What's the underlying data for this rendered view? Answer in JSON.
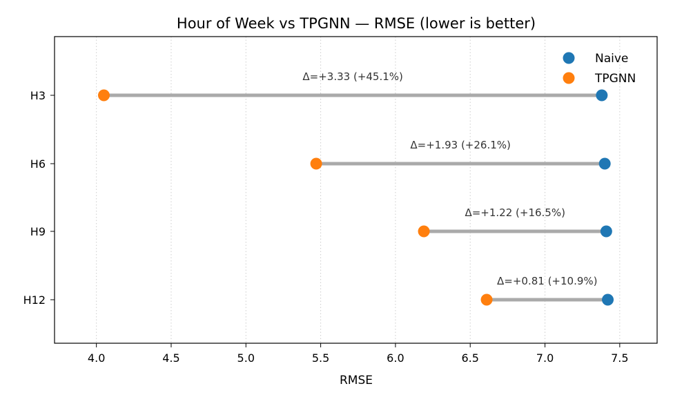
{
  "chart_data": {
    "type": "dumbbell",
    "title": "Hour of Week vs TPGNN — RMSE (lower is better)",
    "xlabel": "RMSE",
    "ylabel": "",
    "xlim": [
      3.72,
      7.75
    ],
    "xticks": [
      "4.0",
      "4.5",
      "5.0",
      "5.5",
      "6.0",
      "6.5",
      "7.0",
      "7.5"
    ],
    "grid": "x, dotted",
    "legend_position": "top-right",
    "categories": [
      "H3",
      "H6",
      "H9",
      "H12"
    ],
    "series": [
      {
        "name": "Naive",
        "color": "#1f77b4",
        "values": [
          7.38,
          7.4,
          7.41,
          7.42
        ]
      },
      {
        "name": "TPGNN",
        "color": "#ff7f0e",
        "values": [
          4.05,
          5.47,
          6.19,
          6.61
        ]
      }
    ],
    "connector_color": "#aaaaaa",
    "annotations": [
      "Δ=+3.33 (+45.1%)",
      "Δ=+1.93 (+26.1%)",
      "Δ=+1.22 (+16.5%)",
      "Δ=+0.81 (+10.9%)"
    ]
  }
}
